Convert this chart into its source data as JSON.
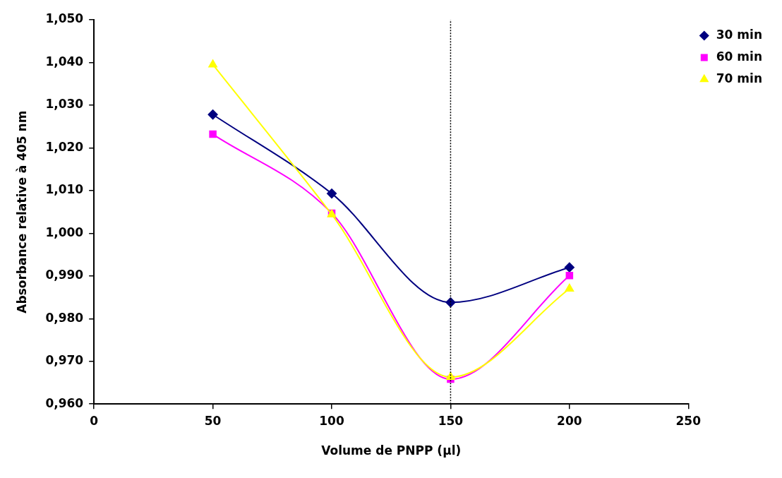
{
  "chart_data": {
    "type": "line",
    "xlabel": "Volume de PNPP (µl)",
    "ylabel": "Absorbance relative à 405 nm",
    "xlim": [
      0,
      250
    ],
    "xticks": [
      0,
      50,
      100,
      150,
      200,
      250
    ],
    "ylim": [
      0.96,
      1.05
    ],
    "yticks": [
      {
        "value": 0.96,
        "label": "0,960"
      },
      {
        "value": 0.97,
        "label": "0,970"
      },
      {
        "value": 0.98,
        "label": "0,980"
      },
      {
        "value": 0.99,
        "label": "0,990"
      },
      {
        "value": 1.0,
        "label": "1,000"
      },
      {
        "value": 1.01,
        "label": "1,010"
      },
      {
        "value": 1.02,
        "label": "1,020"
      },
      {
        "value": 1.03,
        "label": "1,030"
      },
      {
        "value": 1.04,
        "label": "1,040"
      },
      {
        "value": 1.05,
        "label": "1,050"
      }
    ],
    "x": [
      50,
      100,
      150,
      200
    ],
    "series": [
      {
        "name": "30 min",
        "color": "#000080",
        "marker": "diamond",
        "values": [
          1.0278,
          1.0093,
          0.9838,
          0.992
        ]
      },
      {
        "name": "60 min",
        "color": "#ff00ff",
        "marker": "square",
        "values": [
          1.0232,
          1.0047,
          0.9658,
          0.9901
        ]
      },
      {
        "name": "70 min",
        "color": "#ffff00",
        "marker": "triangle",
        "values": [
          1.0395,
          1.0044,
          0.9663,
          0.987
        ]
      }
    ],
    "ref_lines": [
      {
        "axis": "x",
        "value": 150,
        "color": "#000000",
        "line_style": "dotted"
      }
    ],
    "grid": false,
    "legend": "top right"
  }
}
